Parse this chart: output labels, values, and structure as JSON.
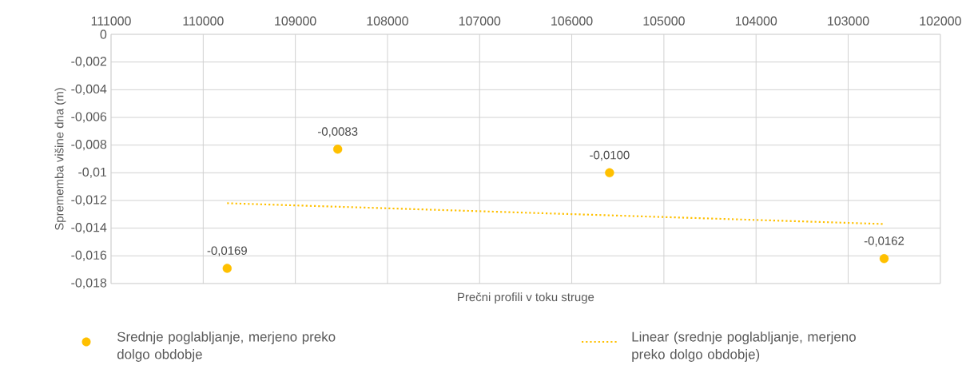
{
  "chart_data": {
    "type": "scatter",
    "xlabel": "Prečni profili v toku struge",
    "ylabel": "Sprememba višine dna (m)",
    "xlim": [
      111000,
      102000
    ],
    "xticks": [
      111000,
      110000,
      109000,
      108000,
      107000,
      106000,
      105000,
      104000,
      103000,
      102000
    ],
    "ylim": [
      -0.018,
      0
    ],
    "yticks": [
      {
        "value": 0,
        "label": "0"
      },
      {
        "value": -0.002,
        "label": "-0,002"
      },
      {
        "value": -0.004,
        "label": "-0,004"
      },
      {
        "value": -0.006,
        "label": "-0,006"
      },
      {
        "value": -0.008,
        "label": "-0,008"
      },
      {
        "value": -0.01,
        "label": "-0,01"
      },
      {
        "value": -0.012,
        "label": "-0,012"
      },
      {
        "value": -0.014,
        "label": "-0,014"
      },
      {
        "value": -0.016,
        "label": "-0,016"
      },
      {
        "value": -0.018,
        "label": "-0,018"
      }
    ],
    "grid": true,
    "legend": "bottom",
    "series": [
      {
        "name": "Srednje poglabljanje, merjeno preko dolgo obdobje",
        "color": "#ffc000",
        "marker": "circle",
        "x": [
          109740,
          108540,
          105590,
          102610
        ],
        "values": [
          -0.0169,
          -0.0083,
          -0.01,
          -0.0162
        ],
        "value_labels": [
          "-0,0169",
          "-0,0083",
          "-0,0100",
          "-0,0162"
        ]
      },
      {
        "name": "Linear (srednje poglabljanje, merjeno preko dolgo obdobje)",
        "type": "line",
        "color": "#ffc000",
        "line_style": "dotted",
        "marker": "none",
        "x": [
          109740,
          102610
        ],
        "values": [
          -0.0122,
          -0.0137
        ]
      }
    ]
  }
}
